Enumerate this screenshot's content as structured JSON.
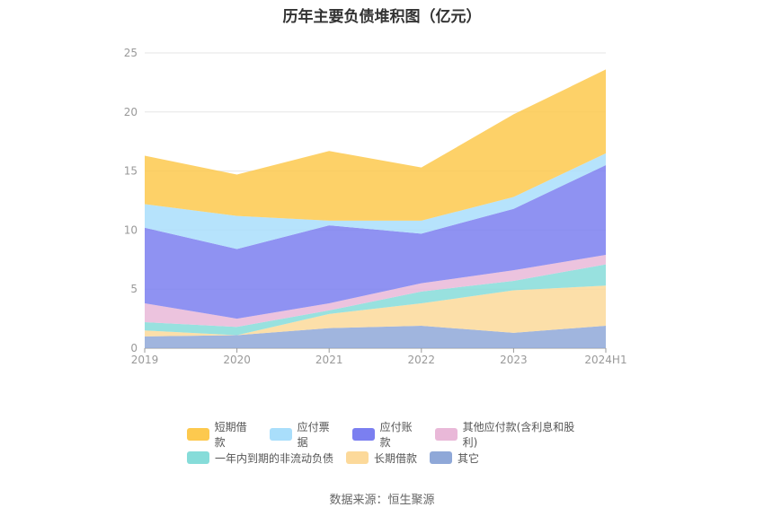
{
  "title": "历年主要负债堆积图（亿元）",
  "source": "数据来源：恒生聚源",
  "chart_data": {
    "type": "area",
    "stacked": true,
    "title": "历年主要负债堆积图（亿元）",
    "categories": [
      "2019",
      "2020",
      "2021",
      "2022",
      "2023",
      "2024H1"
    ],
    "ylim": [
      0,
      25
    ],
    "yticks": [
      "0",
      "5",
      "10",
      "15",
      "20",
      "25"
    ],
    "grid": true,
    "legend_position": "bottom",
    "series": [
      {
        "name": "其它",
        "color": "#8fa8d8",
        "values": [
          1.0,
          1.1,
          1.7,
          1.9,
          1.3,
          1.9
        ]
      },
      {
        "name": "长期借款",
        "color": "#fcd99a",
        "values": [
          0.5,
          0.0,
          1.2,
          1.9,
          3.6,
          3.4
        ]
      },
      {
        "name": "一年内到期的非流动负债",
        "color": "#86dcd9",
        "values": [
          0.7,
          0.7,
          0.3,
          1.0,
          0.8,
          1.8
        ]
      },
      {
        "name": "其他应付款(含利息和股利)",
        "color": "#e9b8d8",
        "values": [
          1.6,
          0.7,
          0.6,
          0.7,
          0.9,
          0.8
        ]
      },
      {
        "name": "应付账款",
        "color": "#7b7ff0",
        "values": [
          6.4,
          5.9,
          6.6,
          4.2,
          5.2,
          7.6
        ]
      },
      {
        "name": "应付票据",
        "color": "#a9defb",
        "values": [
          2.0,
          2.8,
          0.4,
          1.1,
          1.0,
          1.0
        ]
      },
      {
        "name": "短期借款",
        "color": "#fdc94e",
        "values": [
          4.1,
          3.5,
          5.9,
          4.5,
          7.0,
          7.1
        ]
      }
    ]
  },
  "legend": {
    "rows": [
      [
        {
          "label": "短期借款",
          "color": "#fdc94e"
        },
        {
          "label": "应付票据",
          "color": "#a9defb"
        },
        {
          "label": "应付账款",
          "color": "#7b7ff0"
        },
        {
          "label": "其他应付款(含利息和股利)",
          "color": "#e9b8d8"
        }
      ],
      [
        {
          "label": "一年内到期的非流动负债",
          "color": "#86dcd9"
        },
        {
          "label": "长期借款",
          "color": "#fcd99a"
        },
        {
          "label": "其它",
          "color": "#8fa8d8"
        }
      ]
    ]
  }
}
